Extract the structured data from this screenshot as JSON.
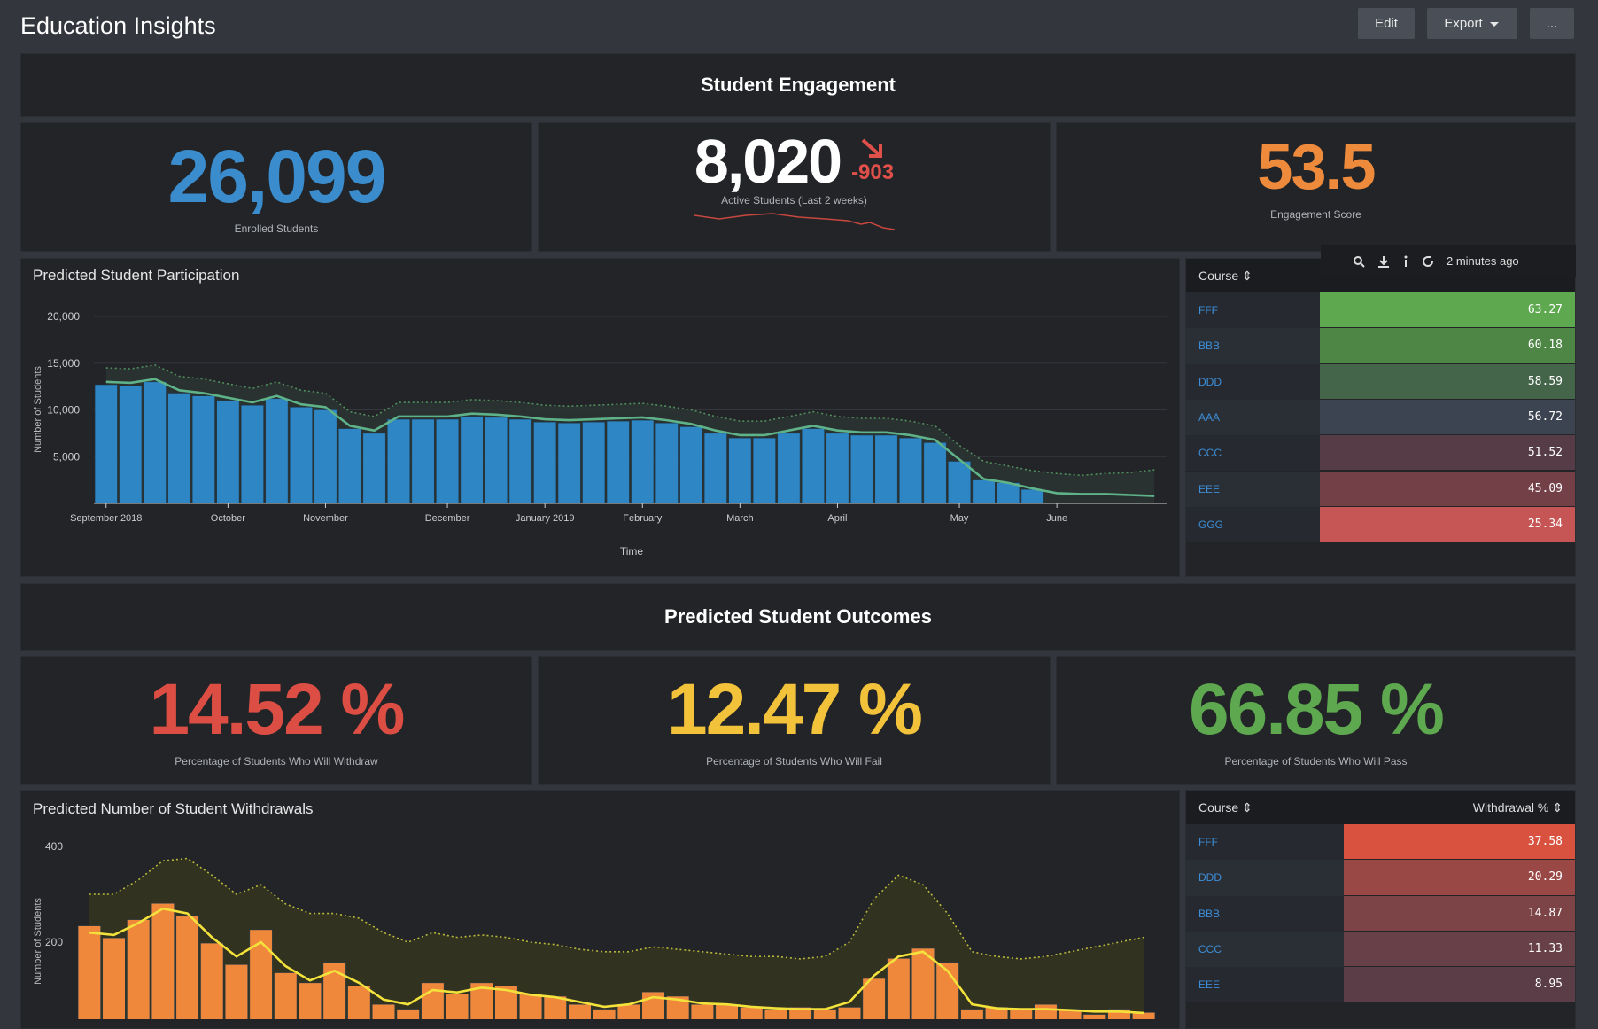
{
  "header": {
    "title": "Education Insights",
    "buttons": [
      "Edit",
      "Export",
      "..."
    ]
  },
  "engagement": {
    "title": "Student Engagement",
    "tiles": [
      {
        "value": "26,099",
        "label": "Enrolled Students",
        "color": "#3a8ccc"
      },
      {
        "value": "8,020",
        "delta": "-903",
        "label": "Active Students (Last 2 weeks)",
        "color": "#ffffff",
        "delta_color": "#e0504a"
      },
      {
        "value": "53.5",
        "label": "Engagement Score",
        "color": "#ee8a3c"
      }
    ]
  },
  "outcomes": {
    "title": "Predicted Student Outcomes",
    "tiles": [
      {
        "value": "14.52",
        "unit": "%",
        "label": "Percentage of Students Who Will Withdraw",
        "color": "#dc4e44"
      },
      {
        "value": "12.47",
        "unit": "%",
        "label": "Percentage of Students Who Will Fail",
        "color": "#f2c23a"
      },
      {
        "value": "66.85",
        "unit": "%",
        "label": "Percentage of Students Who Will Pass",
        "color": "#5ea84f"
      }
    ]
  },
  "toolbar": {
    "text": "2 minutes ago"
  },
  "tables": [
    {
      "columns": [
        "Course ⇕"
      ],
      "rows": [
        [
          "FFF",
          "63.27"
        ],
        [
          "BBB",
          "60.18"
        ],
        [
          "DDD",
          "58.59"
        ],
        [
          "AAA",
          "56.72"
        ],
        [
          "CCC",
          "51.52"
        ],
        [
          "EEE",
          "45.09"
        ],
        [
          "GGG",
          "25.34"
        ]
      ],
      "row_colors": [
        "#5ea84f",
        "#4e8646",
        "#44654a",
        "#3b4450",
        "#563c46",
        "#744048",
        "#c65656"
      ]
    },
    {
      "columns": [
        "Course ⇕",
        "Withdrawal % ⇕"
      ],
      "rows": [
        [
          "FFF",
          "37.58"
        ],
        [
          "DDD",
          "20.29"
        ],
        [
          "BBB",
          "14.87"
        ],
        [
          "CCC",
          "11.33"
        ],
        [
          "EEE",
          "8.95"
        ]
      ],
      "row_colors": [
        "#d8523f",
        "#9a4845",
        "#7c4446",
        "#684148",
        "#5a3d47"
      ]
    }
  ],
  "chart_data": [
    {
      "type": "bar",
      "title": "Predicted Student Participation",
      "y_label": "Number of Students",
      "x_label": "Time",
      "categories": [
        "September 2018",
        null,
        null,
        null,
        null,
        "October",
        null,
        null,
        null,
        "November",
        null,
        null,
        null,
        null,
        "December",
        null,
        null,
        null,
        "January 2019",
        null,
        null,
        null,
        "February",
        null,
        null,
        null,
        "March",
        null,
        null,
        null,
        "April",
        null,
        null,
        null,
        null,
        "May",
        null,
        null,
        null,
        "June",
        null,
        null,
        null,
        null
      ],
      "ylim": [
        0,
        20000
      ],
      "yticks": [
        {
          "value": 5000,
          "label": "5,000"
        },
        {
          "value": 10000,
          "label": "10,000"
        },
        {
          "value": 15000,
          "label": "15,000"
        },
        {
          "value": 20000,
          "label": "20,000"
        }
      ],
      "grid": true,
      "series": [
        {
          "kind": "dotted",
          "color": "#4f8f5c",
          "band_color": "#2c3433",
          "values": [
            14500,
            14400,
            14800,
            13600,
            13300,
            12800,
            12300,
            13000,
            12100,
            11800,
            9800,
            9300,
            10800,
            10800,
            10800,
            11100,
            11000,
            10800,
            10500,
            10400,
            10500,
            10600,
            10700,
            10400,
            10000,
            9300,
            8800,
            8800,
            9300,
            9800,
            9300,
            9100,
            9100,
            8800,
            8300,
            6200,
            4500,
            4000,
            3500,
            3200,
            3000,
            3200,
            3300,
            3600
          ]
        },
        {
          "kind": "bar",
          "color": "#2f86c4",
          "values": [
            12700,
            12600,
            13000,
            11800,
            11500,
            11000,
            10500,
            11200,
            10300,
            10000,
            8000,
            7500,
            9000,
            9000,
            9000,
            9300,
            9200,
            9000,
            8700,
            8600,
            8700,
            8800,
            8900,
            8600,
            8200,
            7500,
            7000,
            7000,
            7500,
            8000,
            7500,
            7300,
            7300,
            7000,
            6500,
            4500,
            2500,
            2200,
            1500,
            null,
            null,
            null,
            null,
            null
          ]
        },
        {
          "kind": "line",
          "color": "#5fb389",
          "values": [
            13000,
            12900,
            13300,
            12100,
            11800,
            11300,
            10800,
            11500,
            10600,
            10300,
            8300,
            7800,
            9300,
            9300,
            9300,
            9600,
            9500,
            9300,
            9000,
            8900,
            9000,
            9100,
            9200,
            8900,
            8500,
            7800,
            7300,
            7300,
            7800,
            8300,
            7800,
            7600,
            7600,
            7300,
            6800,
            4700,
            2600,
            2200,
            1600,
            1100,
            1000,
            1000,
            900,
            800
          ]
        }
      ]
    },
    {
      "type": "bar",
      "title": "Predicted Number of Student Withdrawals",
      "y_label": "Number of Students",
      "ylim": [
        0,
        400
      ],
      "yticks": [
        200,
        400
      ],
      "grid": false,
      "series": [
        {
          "kind": "dotted",
          "color": "#b9b83c",
          "band_color": "#34351f",
          "values": [
            300,
            300,
            330,
            370,
            375,
            340,
            300,
            320,
            280,
            260,
            260,
            250,
            220,
            200,
            220,
            210,
            215,
            210,
            200,
            195,
            185,
            180,
            180,
            190,
            185,
            180,
            175,
            170,
            170,
            165,
            170,
            200,
            290,
            340,
            320,
            260,
            180,
            170,
            165,
            170,
            180,
            190,
            200,
            210
          ]
        },
        {
          "kind": "bar",
          "color": "#f0883c",
          "values": [
            234,
            209,
            247,
            281,
            256,
            198,
            153,
            226,
            136,
            115,
            158,
            109,
            70,
            60,
            115,
            92,
            115,
            109,
            92,
            87,
            70,
            60,
            70,
            96,
            87,
            70,
            70,
            64,
            60,
            64,
            60,
            64,
            124,
            166,
            187,
            158,
            60,
            64,
            60,
            70,
            60,
            49,
            60,
            53
          ]
        },
        {
          "kind": "line",
          "color": "#f3e23b",
          "values": [
            220,
            215,
            240,
            270,
            260,
            210,
            170,
            200,
            150,
            120,
            140,
            115,
            80,
            70,
            100,
            95,
            105,
            100,
            90,
            85,
            75,
            65,
            70,
            85,
            80,
            72,
            70,
            65,
            62,
            60,
            60,
            75,
            130,
            170,
            180,
            140,
            70,
            62,
            60,
            60,
            58,
            55,
            55,
            52
          ]
        }
      ]
    }
  ]
}
